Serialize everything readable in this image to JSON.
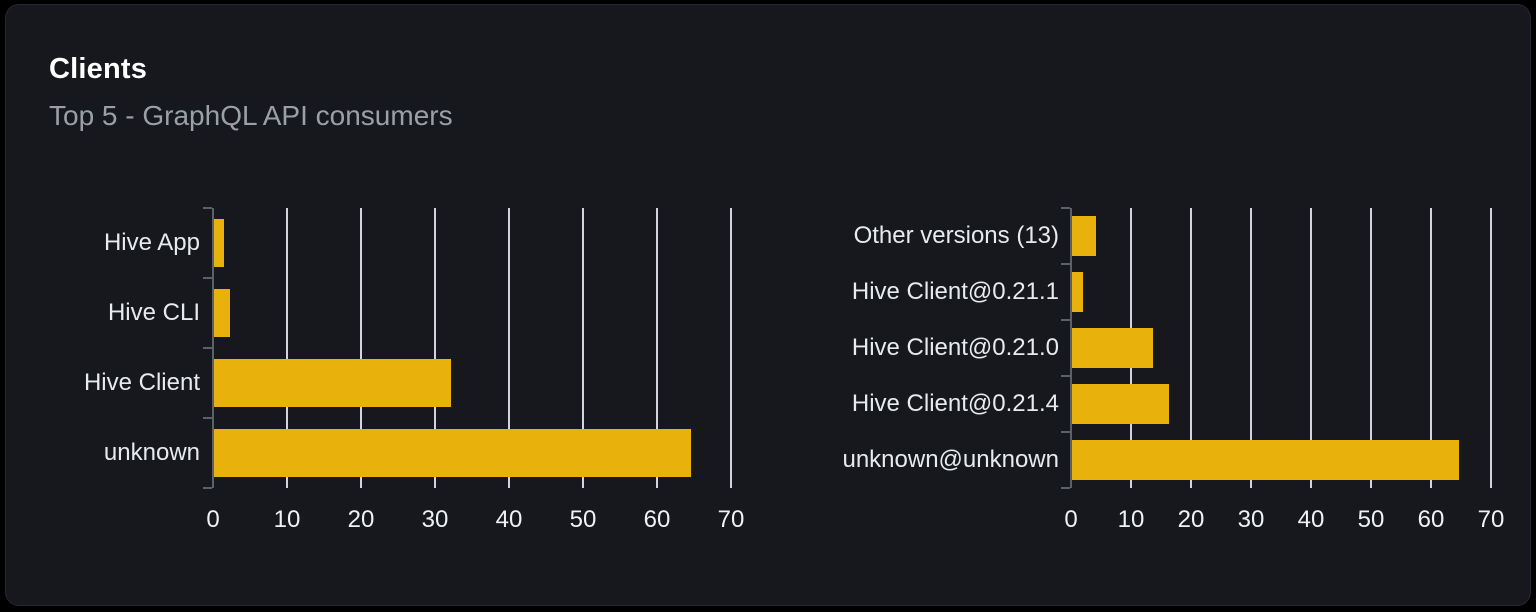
{
  "panel": {
    "title": "Clients",
    "subtitle": "Top 5 - GraphQL API consumers"
  },
  "colors": {
    "page_bg": "#000000",
    "card_bg": "#16181d",
    "card_border": "#25282f",
    "title": "#ffffff",
    "subtitle": "#9aa0a8",
    "bar": "#e8b10c",
    "gridline": "#e2e7ef",
    "axis": "#5c6067",
    "tick_label": "#eef1f5"
  },
  "chart_data": [
    {
      "type": "bar",
      "orientation": "horizontal",
      "title": "",
      "categories_order": "top-to-bottom",
      "categories": [
        "Hive App",
        "Hive CLI",
        "Hive Client",
        "unknown"
      ],
      "values": [
        1.3,
        2.2,
        32,
        64.5
      ],
      "xlim": [
        0,
        70
      ],
      "xticks": [
        0,
        10,
        20,
        30,
        40,
        50,
        60,
        70
      ],
      "grid": true,
      "legend": false,
      "bar_color": "#e8b10c",
      "xlabel": "",
      "ylabel": ""
    },
    {
      "type": "bar",
      "orientation": "horizontal",
      "title": "",
      "categories_order": "top-to-bottom",
      "categories": [
        "Other versions (13)",
        "Hive Client@0.21.1",
        "Hive Client@0.21.0",
        "Hive Client@0.21.4",
        "unknown@unknown"
      ],
      "values": [
        4,
        1.8,
        13.5,
        16.2,
        64.5
      ],
      "xlim": [
        0,
        70
      ],
      "xticks": [
        0,
        10,
        20,
        30,
        40,
        50,
        60,
        70
      ],
      "grid": true,
      "legend": false,
      "bar_color": "#e8b10c",
      "xlabel": "",
      "ylabel": ""
    }
  ]
}
